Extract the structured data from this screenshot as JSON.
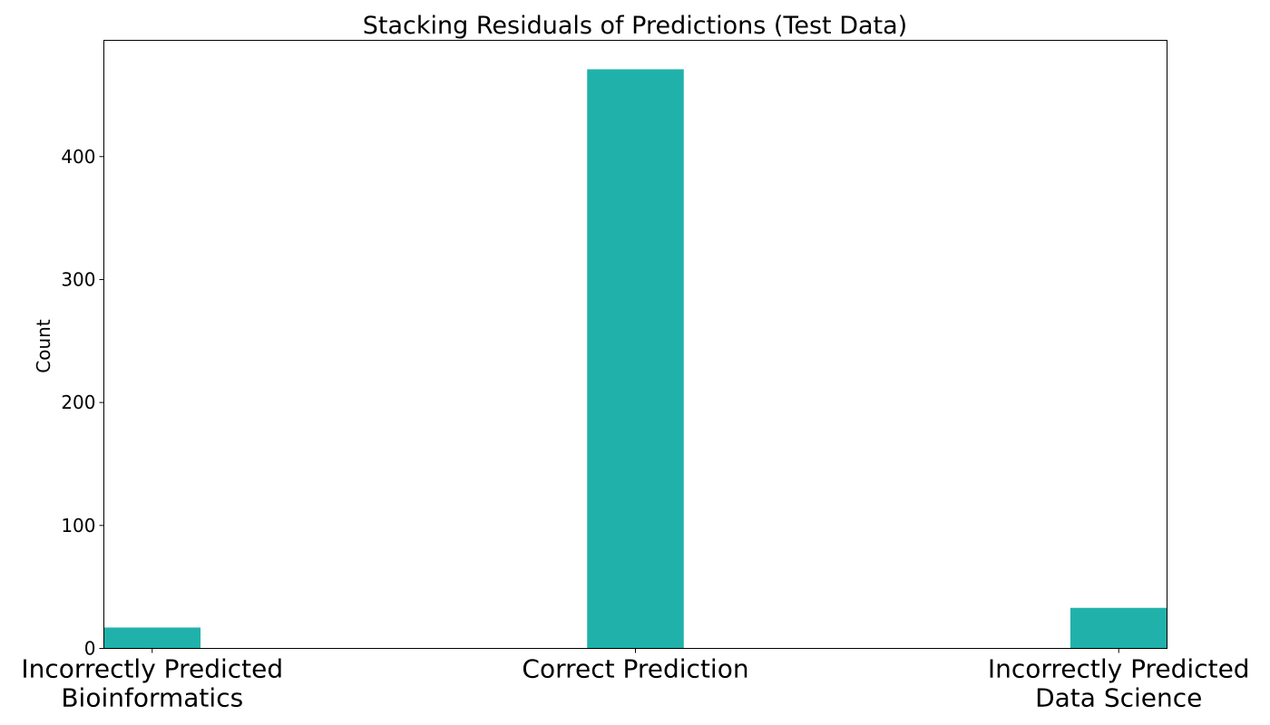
{
  "chart_data": {
    "type": "bar",
    "title": "Stacking Residuals of Predictions (Test Data)",
    "xlabel": "",
    "ylabel": "Count",
    "categories": [
      [
        "Incorrectly Predicted",
        "Bioinformatics"
      ],
      [
        "Correct Prediction"
      ],
      [
        "Incorrectly Predicted",
        "Data Science"
      ]
    ],
    "x": [
      -1,
      0,
      1
    ],
    "values": [
      17,
      471,
      33
    ],
    "xlim": [
      -1.1,
      1.1
    ],
    "ylim": [
      0,
      494.55
    ],
    "yticks": [
      0,
      100,
      200,
      300,
      400
    ],
    "bar_color": "#20b2aa",
    "grid": false,
    "legend": "none"
  }
}
